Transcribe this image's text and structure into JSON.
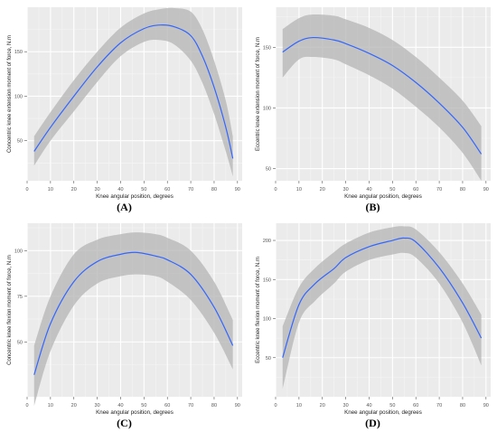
{
  "panels": [
    {
      "label": "A",
      "caption": "(A)",
      "chart_data": {
        "type": "line",
        "xlabel": "Knee angular position, degrees",
        "ylabel": "Concentric knee extension moment of force, N.m",
        "xlim": [
          0,
          92
        ],
        "ylim": [
          5,
          200
        ],
        "xticks": [
          0,
          10,
          20,
          30,
          40,
          50,
          60,
          70,
          80,
          90
        ],
        "yticks": [
          50,
          100,
          150
        ],
        "grid": true,
        "x": [
          3,
          10,
          20,
          30,
          40,
          50,
          57,
          63,
          70,
          75,
          80,
          85,
          88
        ],
        "y": [
          38,
          65,
          100,
          133,
          160,
          176,
          180,
          178,
          168,
          145,
          110,
          65,
          30
        ],
        "upper": [
          55,
          82,
          118,
          150,
          177,
          193,
          198,
          199,
          195,
          175,
          140,
          95,
          55
        ],
        "lower": [
          22,
          50,
          83,
          116,
          145,
          161,
          163,
          158,
          140,
          115,
          80,
          38,
          10
        ]
      }
    },
    {
      "label": "B",
      "caption": "(B)",
      "chart_data": {
        "type": "line",
        "xlabel": "Knee angular position, degrees",
        "ylabel": "Eccentric knee extension moment of force, N.m",
        "xlim": [
          0,
          92
        ],
        "ylim": [
          40,
          183
        ],
        "xticks": [
          0,
          10,
          20,
          30,
          40,
          50,
          60,
          70,
          80,
          90
        ],
        "yticks": [
          50,
          100,
          150
        ],
        "grid": true,
        "x": [
          3,
          10,
          16,
          25,
          30,
          40,
          50,
          60,
          70,
          80,
          88
        ],
        "y": [
          146,
          155,
          158,
          156,
          153,
          145,
          135,
          121,
          104,
          84,
          62
        ],
        "upper": [
          165,
          174,
          177,
          176,
          173,
          166,
          156,
          142,
          125,
          106,
          85
        ],
        "lower": [
          125,
          140,
          142,
          140,
          136,
          127,
          116,
          101,
          84,
          63,
          40
        ]
      }
    },
    {
      "label": "C",
      "caption": "(C)",
      "chart_data": {
        "type": "line",
        "xlabel": "Knee angular position, degrees",
        "ylabel": "Concentric knee flexion moment of force, N.m",
        "xlim": [
          0,
          92
        ],
        "ylim": [
          20,
          115
        ],
        "xticks": [
          0,
          10,
          20,
          30,
          40,
          50,
          60,
          70,
          80,
          90
        ],
        "yticks": [
          50,
          75,
          100
        ],
        "grid": true,
        "x": [
          3,
          10,
          20,
          30,
          40,
          47,
          55,
          60,
          70,
          80,
          88
        ],
        "y": [
          32,
          60,
          83,
          94,
          98,
          99,
          97,
          95,
          87,
          69,
          48
        ],
        "upper": [
          48,
          75,
          98,
          106,
          109,
          110,
          109,
          107,
          100,
          83,
          62
        ],
        "lower": [
          15,
          45,
          70,
          82,
          86,
          87,
          86,
          83,
          73,
          55,
          35
        ]
      }
    },
    {
      "label": "D",
      "caption": "(D)",
      "chart_data": {
        "type": "line",
        "xlabel": "Knee angular position, degrees",
        "ylabel": "Eccentric knee flexion moment of force, N.m",
        "xlim": [
          0,
          92
        ],
        "ylim": [
          0,
          222
        ],
        "xticks": [
          0,
          10,
          20,
          30,
          40,
          50,
          60,
          70,
          80,
          90
        ],
        "yticks": [
          50,
          100,
          150,
          200
        ],
        "grid": true,
        "x": [
          3,
          10,
          17,
          25,
          30,
          40,
          50,
          55,
          60,
          70,
          80,
          88
        ],
        "y": [
          50,
          118,
          145,
          164,
          178,
          192,
          200,
          203,
          198,
          165,
          120,
          75
        ],
        "upper": [
          90,
          140,
          165,
          185,
          196,
          210,
          217,
          218,
          214,
          185,
          145,
          105
        ],
        "lower": [
          10,
          95,
          123,
          145,
          160,
          175,
          182,
          184,
          178,
          145,
          95,
          40
        ]
      }
    }
  ]
}
